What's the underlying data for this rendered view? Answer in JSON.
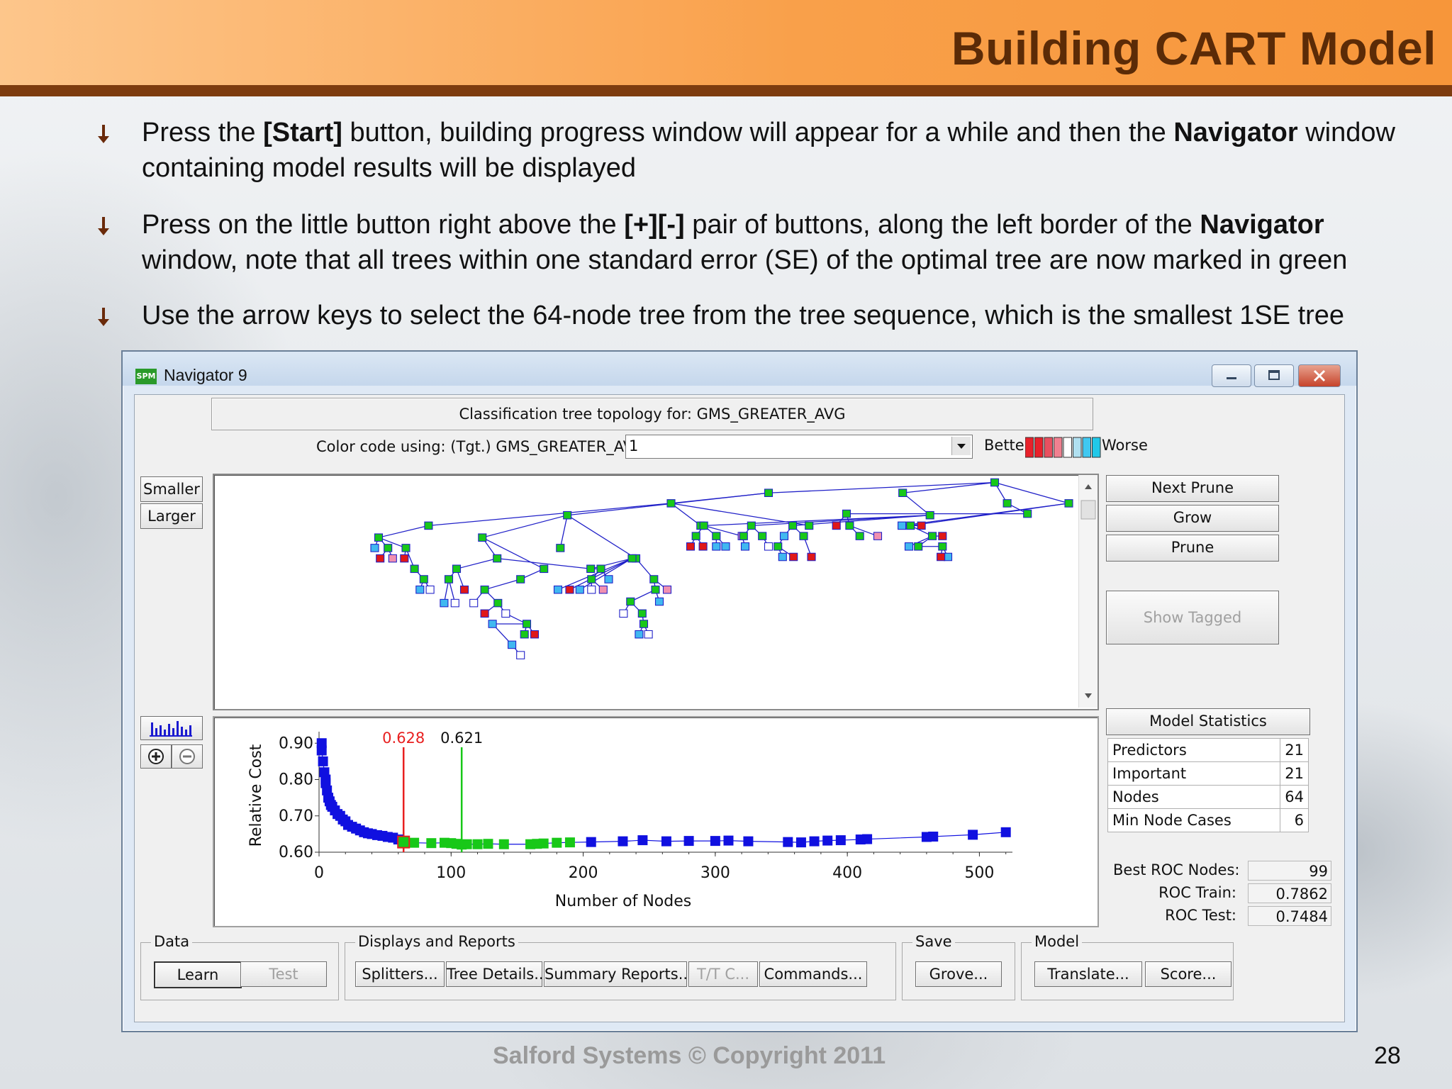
{
  "slide": {
    "title": "Building CART Model",
    "bullets": [
      {
        "pre": "Press the ",
        "b1": "[Start]",
        "mid": " button, building progress window will appear for a while and then the ",
        "b2": "Navigator",
        "post": " window containing model results will be displayed"
      },
      {
        "pre": "Press on the little button right above the ",
        "b1": "[+][-]",
        "mid": " pair of buttons, along the left border of the ",
        "b2": "Navigator",
        "post": " window, note that all trees within one standard error (SE) of the optimal tree are now marked in green"
      },
      {
        "text": "Use the arrow keys to select the 64-node tree from the tree sequence, which is the smallest 1SE tree"
      }
    ],
    "footer": "Salford Systems   © Copyright 2011",
    "page_number": "28"
  },
  "window": {
    "app_icon": "SPM",
    "title": "Navigator 9",
    "topology_label": "Classification tree topology for: GMS_GREATER_AVG",
    "color_code_label": "Color code using: (Tgt.) GMS_GREATER_AVG",
    "color_code_value": "1",
    "better_label": "Better",
    "worse_label": "Worse",
    "color_scale": [
      "#e8212b",
      "#e8212b",
      "#e85060",
      "#f08090",
      "#ffffff",
      "#b0e0f0",
      "#40c8f0",
      "#20c8e8"
    ],
    "smaller_label": "Smaller",
    "larger_label": "Larger",
    "side_buttons": {
      "next_prune": "Next Prune",
      "grow": "Grow",
      "prune": "Prune",
      "show_tagged": "Show Tagged"
    },
    "model_statistics": {
      "header": "Model Statistics",
      "rows": [
        {
          "label": "Predictors",
          "value": "21"
        },
        {
          "label": "Important",
          "value": "21"
        },
        {
          "label": "Nodes",
          "value": "64"
        },
        {
          "label": "Min Node Cases",
          "value": "6"
        }
      ]
    },
    "roc": [
      {
        "label": "Best ROC Nodes:",
        "value": "99"
      },
      {
        "label": "ROC Train:",
        "value": "0.7862"
      },
      {
        "label": "ROC Test:",
        "value": "0.7484"
      }
    ],
    "groups": {
      "data": {
        "label": "Data",
        "buttons": [
          "Learn",
          "Test"
        ]
      },
      "displays": {
        "label": "Displays and Reports",
        "buttons": [
          "Splitters...",
          "Tree Details...",
          "Summary Reports...",
          "T/T C...",
          "Commands..."
        ]
      },
      "save": {
        "label": "Save",
        "buttons": [
          "Grove..."
        ]
      },
      "model": {
        "label": "Model",
        "buttons": [
          "Translate...",
          "Score..."
        ]
      }
    }
  },
  "chart_data": {
    "type": "scatter",
    "xlabel": "Number of Nodes",
    "ylabel": "Relative Cost",
    "xlim": [
      0,
      525
    ],
    "ylim": [
      0.6,
      0.92
    ],
    "xticks": [
      "0",
      "100",
      "200",
      "300",
      "400",
      "500"
    ],
    "yticks": [
      "0.60",
      "0.70",
      "0.80",
      "0.90"
    ],
    "markers": [
      {
        "label": "0.628",
        "x": 64,
        "color": "#e82020"
      },
      {
        "label": "0.621",
        "x": 108,
        "color": "#18c818"
      }
    ],
    "series": [
      {
        "color": "#1010e0",
        "points": [
          [
            2,
            0.9
          ],
          [
            2,
            0.88
          ],
          [
            3,
            0.85
          ],
          [
            4,
            0.82
          ],
          [
            5,
            0.8
          ],
          [
            5,
            0.79
          ],
          [
            6,
            0.77
          ],
          [
            7,
            0.75
          ],
          [
            8,
            0.74
          ],
          [
            9,
            0.73
          ],
          [
            10,
            0.725
          ],
          [
            12,
            0.715
          ],
          [
            14,
            0.705
          ],
          [
            16,
            0.7
          ],
          [
            18,
            0.69
          ],
          [
            20,
            0.685
          ],
          [
            22,
            0.675
          ],
          [
            25,
            0.67
          ],
          [
            28,
            0.665
          ],
          [
            31,
            0.66
          ],
          [
            34,
            0.655
          ],
          [
            37,
            0.652
          ],
          [
            40,
            0.65
          ],
          [
            44,
            0.647
          ],
          [
            48,
            0.645
          ],
          [
            52,
            0.642
          ],
          [
            56,
            0.64
          ],
          [
            60,
            0.635
          ],
          [
            206,
            0.628
          ],
          [
            230,
            0.63
          ],
          [
            245,
            0.633
          ],
          [
            263,
            0.63
          ],
          [
            280,
            0.631
          ],
          [
            300,
            0.631
          ],
          [
            310,
            0.632
          ],
          [
            325,
            0.63
          ],
          [
            355,
            0.628
          ],
          [
            365,
            0.627
          ],
          [
            375,
            0.63
          ],
          [
            385,
            0.632
          ],
          [
            395,
            0.633
          ],
          [
            410,
            0.635
          ],
          [
            415,
            0.636
          ],
          [
            460,
            0.642
          ],
          [
            465,
            0.643
          ],
          [
            495,
            0.648
          ],
          [
            520,
            0.655
          ]
        ]
      },
      {
        "color": "#18c818",
        "points": [
          [
            64,
            0.628
          ],
          [
            72,
            0.626
          ],
          [
            85,
            0.625
          ],
          [
            95,
            0.626
          ],
          [
            100,
            0.625
          ],
          [
            104,
            0.623
          ],
          [
            108,
            0.621
          ],
          [
            112,
            0.622
          ],
          [
            120,
            0.622
          ],
          [
            128,
            0.623
          ],
          [
            140,
            0.622
          ],
          [
            160,
            0.622
          ],
          [
            165,
            0.623
          ],
          [
            170,
            0.624
          ],
          [
            180,
            0.626
          ],
          [
            190,
            0.627
          ]
        ]
      }
    ]
  }
}
